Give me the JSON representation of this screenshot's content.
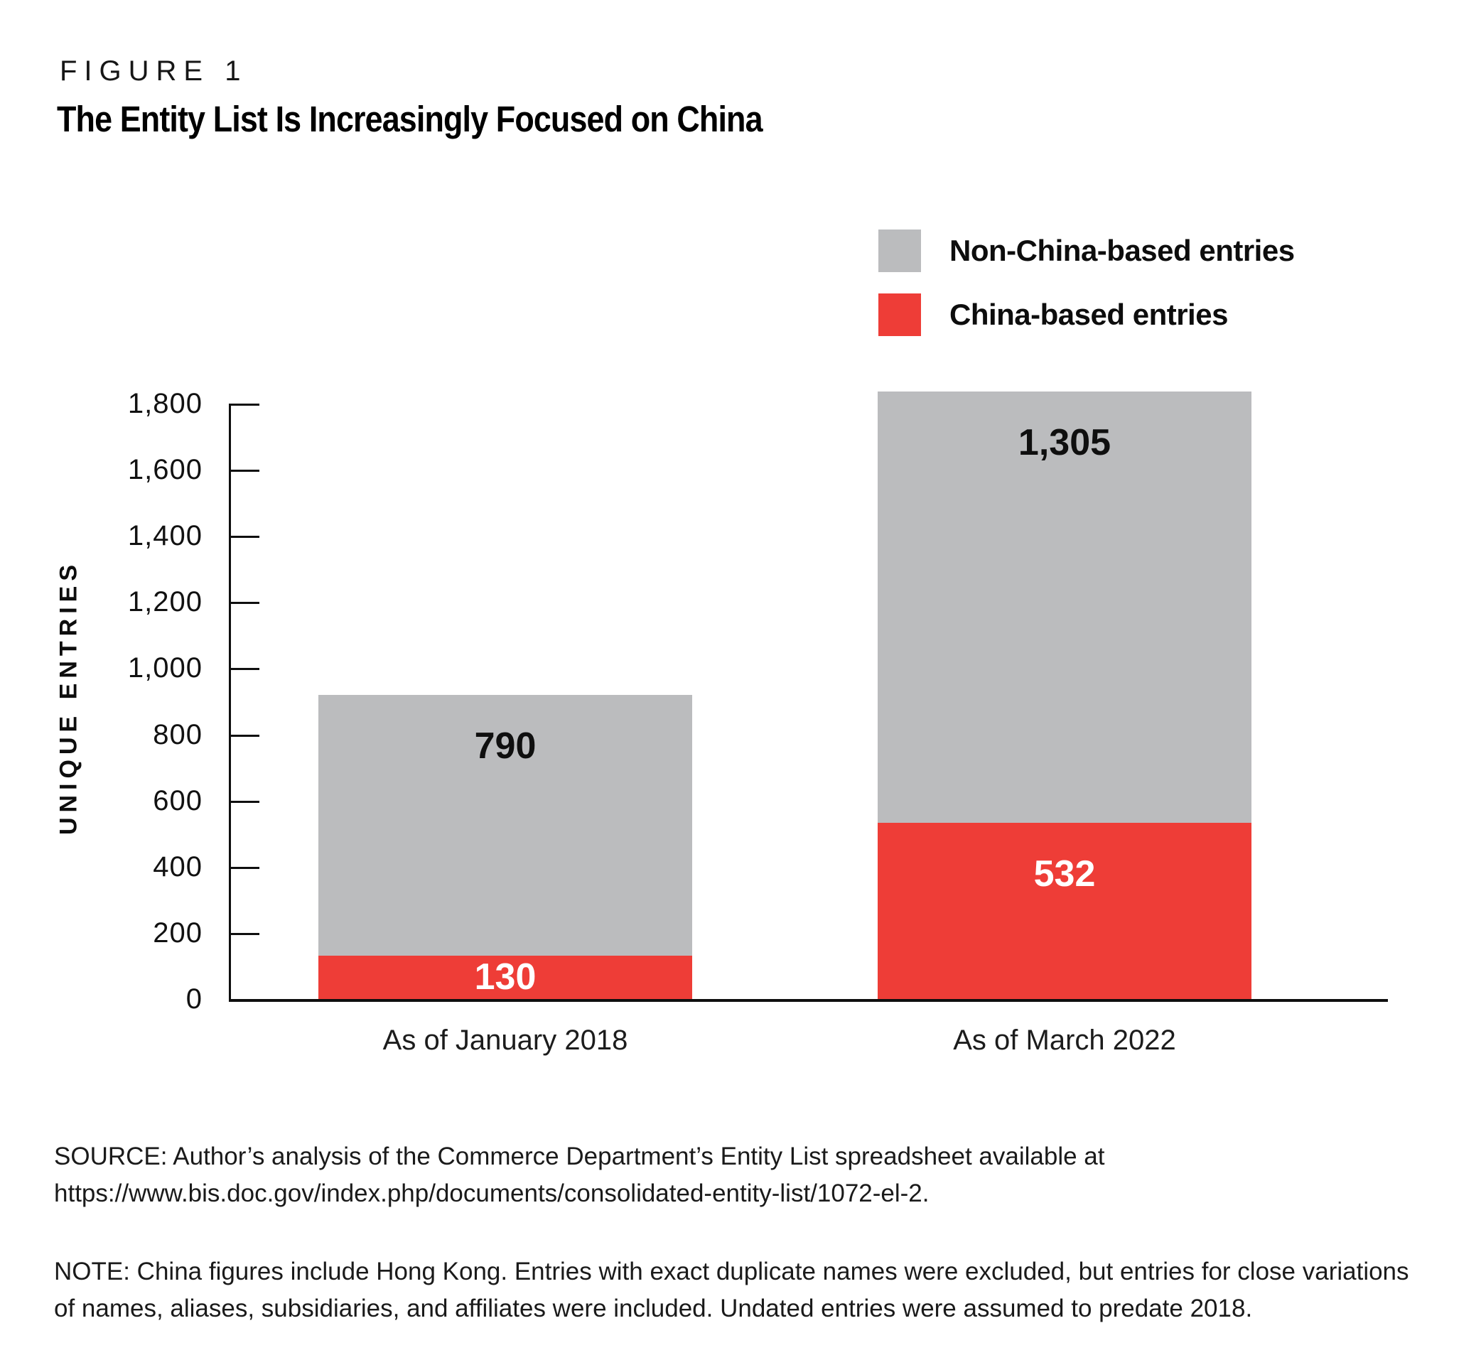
{
  "figure": {
    "eyebrow": "FIGURE 1",
    "title": "The Entity List Is Increasingly Focused on China"
  },
  "legend": [
    {
      "label": "Non-China-based entries",
      "color": "#bbbcbe"
    },
    {
      "label": "China-based entries",
      "color": "#ee3d37"
    }
  ],
  "chart_data": {
    "type": "bar",
    "stacked": true,
    "title": "The Entity List Is Increasingly Focused on China",
    "categories": [
      "As of January 2018",
      "As of March 2022"
    ],
    "series": [
      {
        "name": "China-based entries",
        "color": "#ee3d37",
        "label_color": "#ffffff",
        "values": [
          130,
          532
        ],
        "labels": [
          "130",
          "532"
        ]
      },
      {
        "name": "Non-China-based entries",
        "color": "#bbbcbe",
        "label_color": "#0f0f0f",
        "values": [
          790,
          1305
        ],
        "labels": [
          "790",
          "1,305"
        ]
      }
    ],
    "totals": [
      920,
      1837
    ],
    "ylabel": "UNIQUE ENTRIES",
    "ylim": [
      0,
      1800
    ],
    "ytick_step": 200,
    "yticks": [
      "1,800",
      "1,600",
      "1,400",
      "1,200",
      "1,000",
      "800",
      "600",
      "400",
      "200",
      "0"
    ],
    "grid": false,
    "legend_position": "top-right"
  },
  "footer": {
    "source": [
      "SOURCE: Author’s analysis of the Commerce Department’s Entity List spreadsheet available at",
      "https://www.bis.doc.gov/index.php/documents/consolidated-entity-list/1072-el-2."
    ],
    "note": [
      "NOTE: China figures include Hong Kong. Entries with exact duplicate names were excluded, but entries for close variations",
      "of names, aliases, subsidiaries, and affiliates were included. Undated entries were assumed to predate 2018."
    ]
  }
}
